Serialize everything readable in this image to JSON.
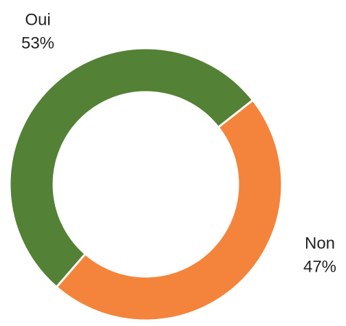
{
  "chart_data": {
    "type": "donut",
    "categories": [
      "Oui",
      "Non"
    ],
    "values": [
      53,
      47
    ],
    "value_labels": [
      "53%",
      "47%"
    ],
    "colors": [
      "#538135",
      "#f4843b"
    ]
  }
}
